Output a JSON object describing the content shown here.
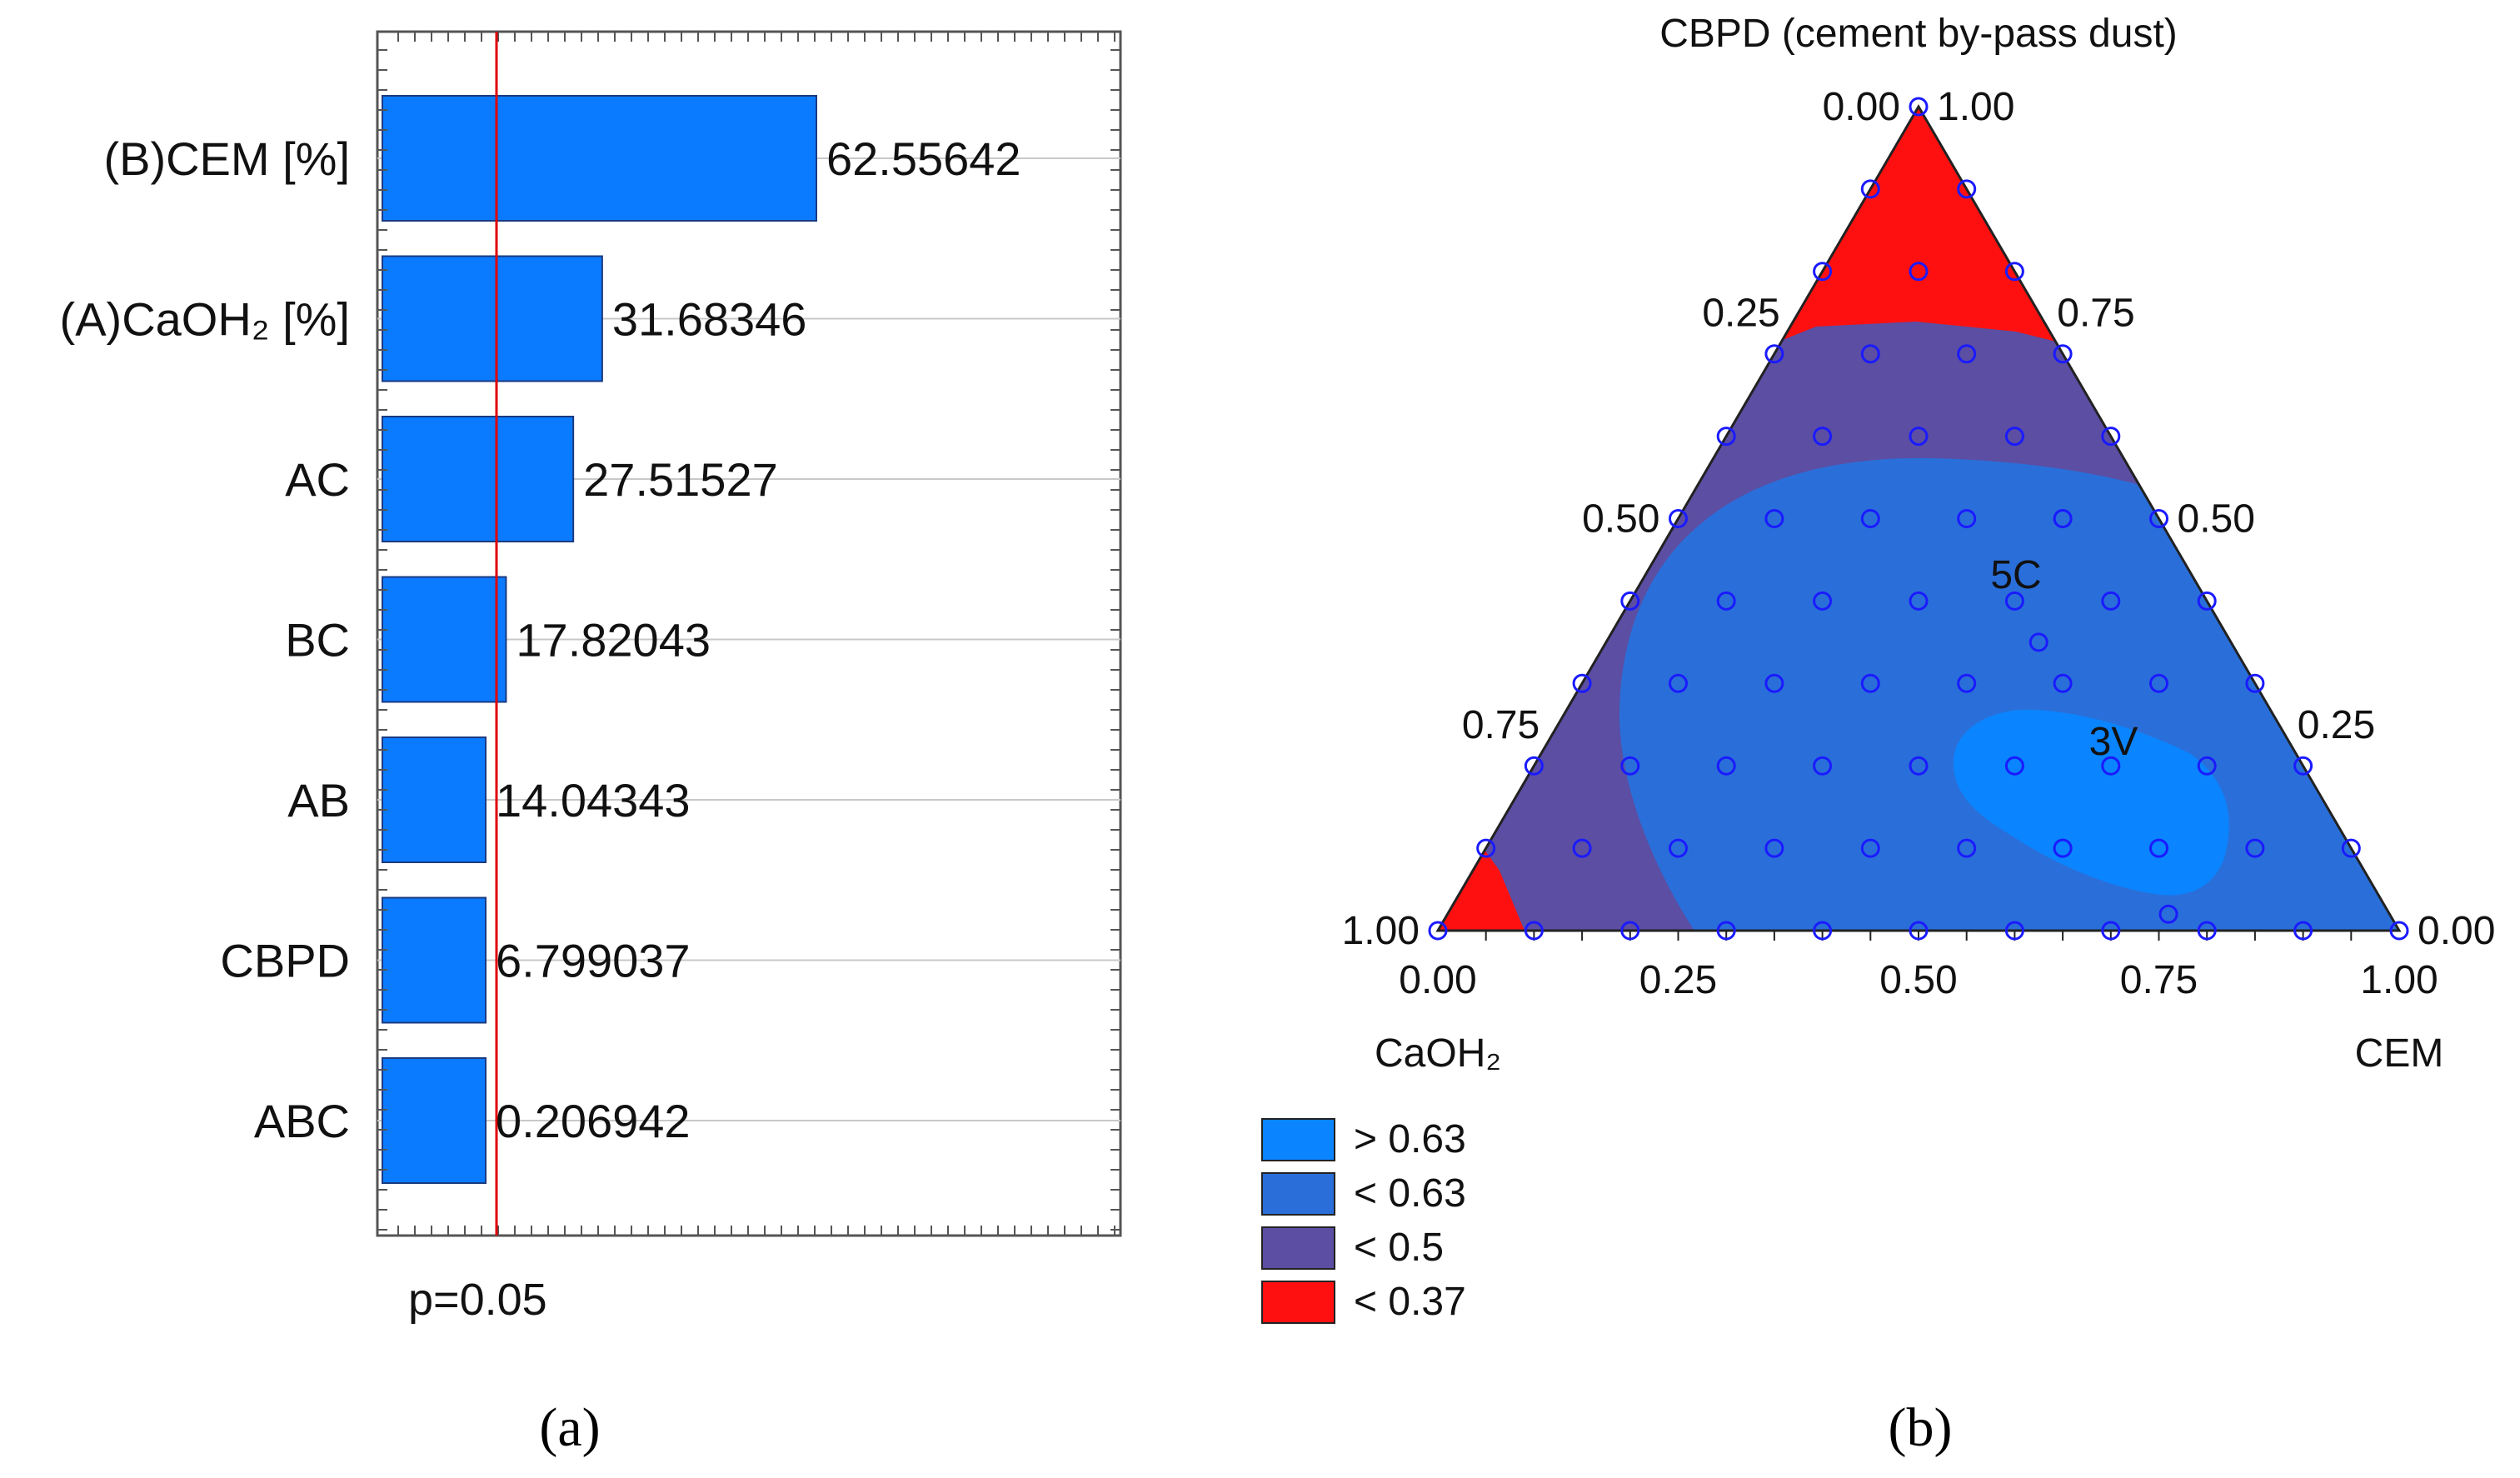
{
  "panel_a": {
    "caption": "(a)",
    "p_label": "p=0.05"
  },
  "panel_b": {
    "caption": "(b)",
    "apex_label": "CBPD (cement by-pass dust)",
    "left_vertex_label": "CaOH₂",
    "right_vertex_label": "CEM",
    "point_labels": [
      "5C",
      "3V"
    ],
    "left_edge_ticks": [
      "1.00",
      "0.75",
      "0.50",
      "0.25",
      "0.00"
    ],
    "right_edge_ticks": [
      "1.00",
      "0.75",
      "0.50",
      "0.25",
      "0.00"
    ],
    "bottom_ticks": [
      "0.00",
      "0.25",
      "0.50",
      "0.75",
      "1.00"
    ],
    "legend": [
      {
        "label": "> 0.63",
        "color": "#0a84ff"
      },
      {
        "label": "< 0.63",
        "color": "#2a6fd9"
      },
      {
        "label": "< 0.5",
        "color": "#5b4ea3"
      },
      {
        "label": "< 0.37",
        "color": "#ff1010"
      }
    ]
  },
  "chart_data": [
    {
      "type": "bar",
      "orientation": "horizontal",
      "categories": [
        "(B)CEM [%]",
        "(A)CaOH₂ [%]",
        "AC",
        "BC",
        "AB",
        "CBPD",
        "ABC"
      ],
      "values": [
        62.55642,
        31.68346,
        27.51527,
        17.82043,
        14.04343,
        6.799037,
        0.206942
      ],
      "value_labels": [
        "62.55642",
        "31.68346",
        "27.51527",
        "17.82043",
        "14.04343",
        "6.799037",
        "0.206942"
      ],
      "reference_line_label": "p=0.05",
      "bar_color": "#0a7bff",
      "reference_line_color": "#e00000",
      "grid": true
    },
    {
      "type": "heatmap",
      "subtype": "ternary contour",
      "axes": [
        "CaOH₂",
        "CEM",
        "CBPD (cement by-pass dust)"
      ],
      "contour_levels": [
        "> 0.63",
        "< 0.63",
        "< 0.5",
        "< 0.37"
      ],
      "labeled_points": [
        "5C",
        "3V"
      ]
    }
  ]
}
